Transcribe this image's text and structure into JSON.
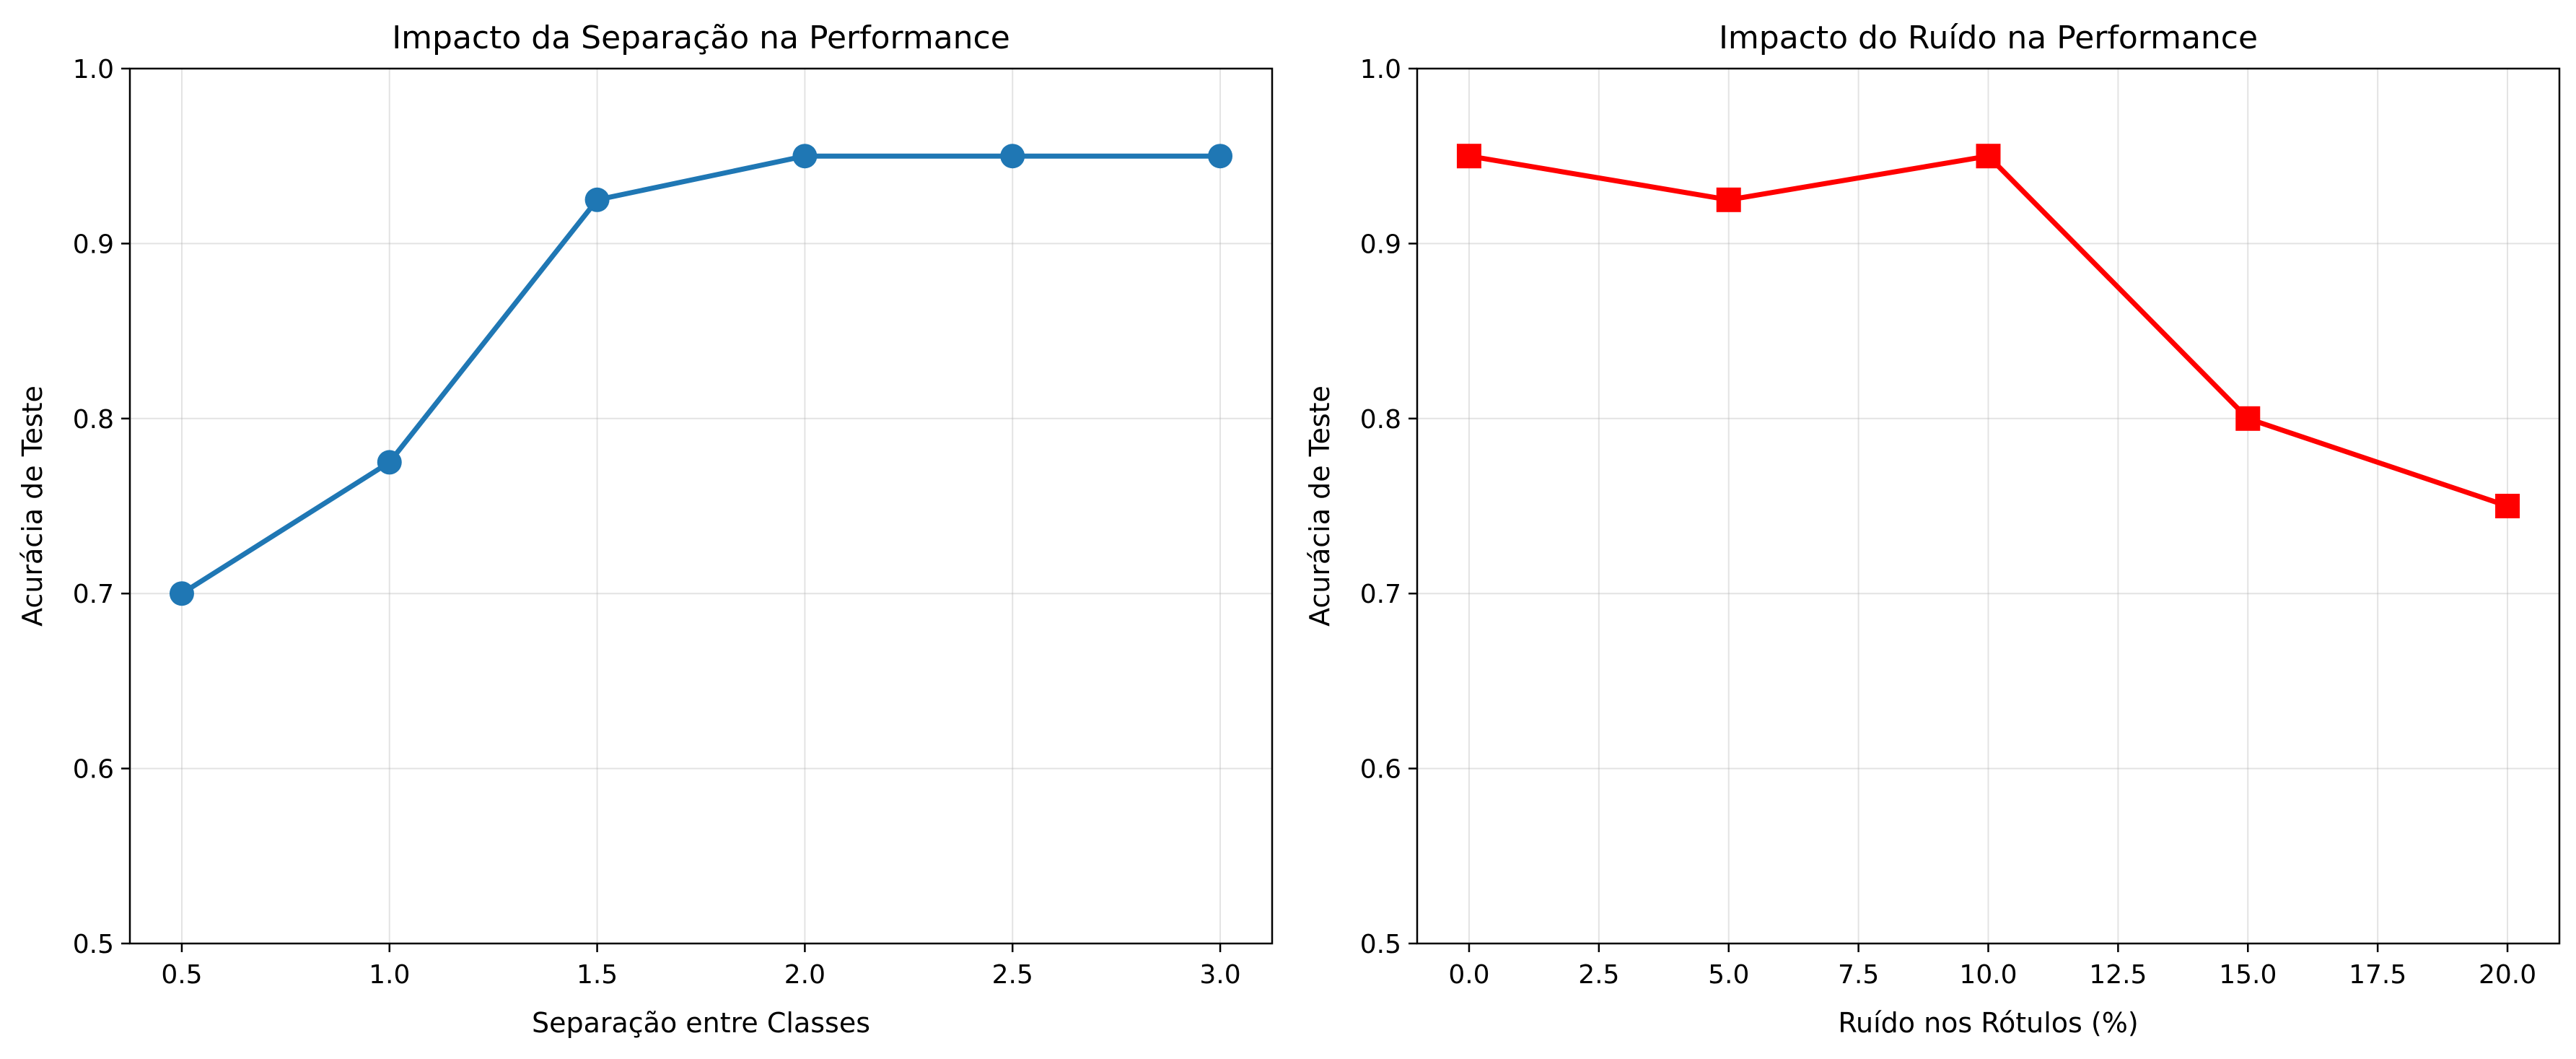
{
  "chart_data": [
    {
      "type": "line",
      "title": "Impacto da Separação na Performance",
      "xlabel": "Separação entre Classes",
      "ylabel": "Acurácia de Teste",
      "x": [
        0.5,
        1.0,
        1.5,
        2.0,
        2.5,
        3.0
      ],
      "series": [
        {
          "values": [
            0.7,
            0.775,
            0.925,
            0.95,
            0.95,
            0.95
          ],
          "color": "#1f77b4",
          "marker": "circle"
        }
      ],
      "xlim": [
        0.375,
        3.125
      ],
      "ylim": [
        0.5,
        1.0
      ],
      "xticks": [
        0.5,
        1.0,
        1.5,
        2.0,
        2.5,
        3.0
      ],
      "xtick_labels": [
        "0.5",
        "1.0",
        "1.5",
        "2.0",
        "2.5",
        "3.0"
      ],
      "yticks": [
        0.5,
        0.6,
        0.7,
        0.8,
        0.9,
        1.0
      ],
      "ytick_labels": [
        "0.5",
        "0.6",
        "0.7",
        "0.8",
        "0.9",
        "1.0"
      ],
      "grid": true
    },
    {
      "type": "line",
      "title": "Impacto do Ruído na Performance",
      "xlabel": "Ruído nos Rótulos (%)",
      "ylabel": "Acurácia de Teste",
      "x": [
        0,
        5,
        10,
        15,
        20
      ],
      "series": [
        {
          "values": [
            0.95,
            0.925,
            0.95,
            0.8,
            0.75
          ],
          "color": "#ff0000",
          "marker": "square"
        }
      ],
      "xlim": [
        -1.0,
        21.0
      ],
      "ylim": [
        0.5,
        1.0
      ],
      "xticks": [
        0.0,
        2.5,
        5.0,
        7.5,
        10.0,
        12.5,
        15.0,
        17.5,
        20.0
      ],
      "xtick_labels": [
        "0.0",
        "2.5",
        "5.0",
        "7.5",
        "10.0",
        "12.5",
        "15.0",
        "17.5",
        "20.0"
      ],
      "yticks": [
        0.5,
        0.6,
        0.7,
        0.8,
        0.9,
        1.0
      ],
      "ytick_labels": [
        "0.5",
        "0.6",
        "0.7",
        "0.8",
        "0.9",
        "1.0"
      ],
      "grid": true
    }
  ]
}
